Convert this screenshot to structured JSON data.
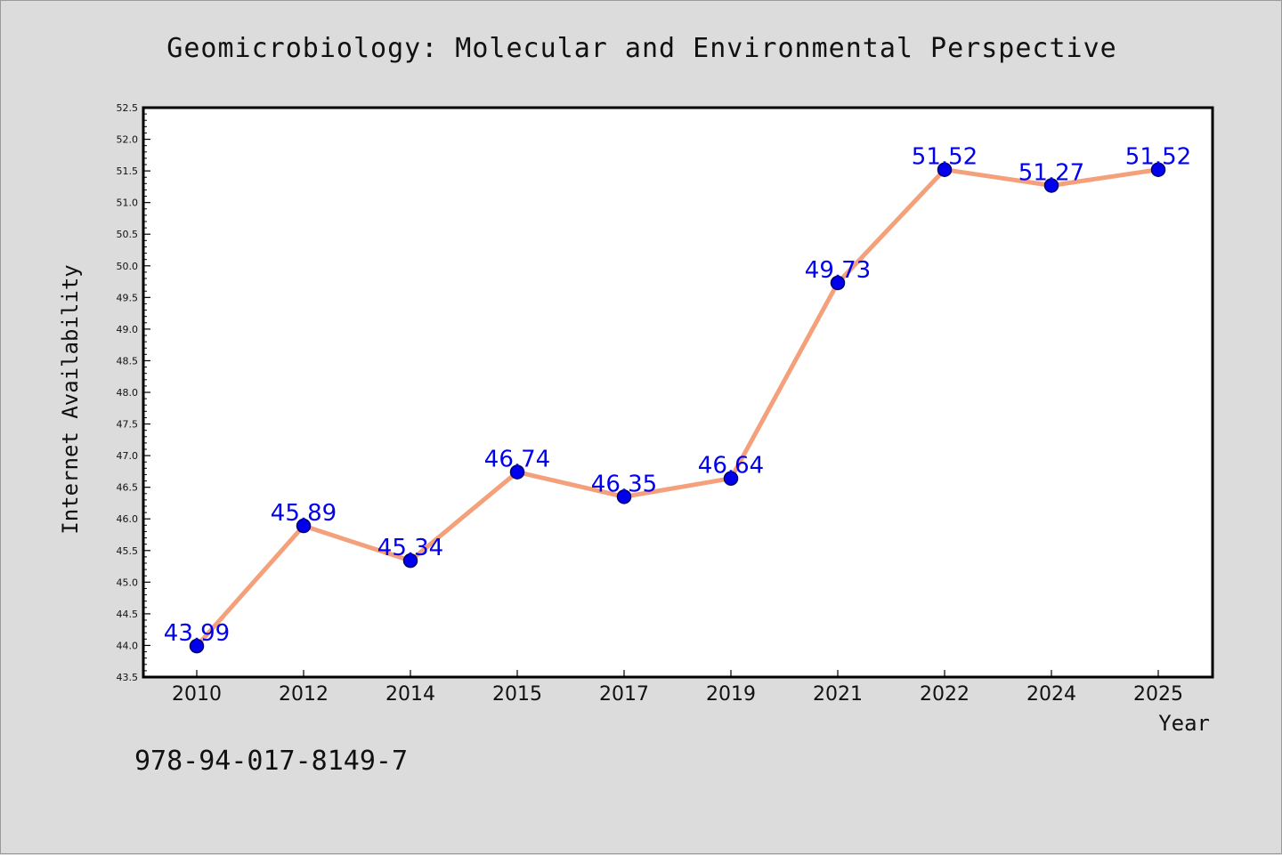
{
  "chart_data": {
    "type": "line",
    "title": "Geomicrobiology: Molecular and Environmental Perspective",
    "xlabel": "Year",
    "ylabel": "Internet Availability",
    "categories": [
      "2010",
      "2012",
      "2014",
      "2015",
      "2017",
      "2019",
      "2021",
      "2022",
      "2024",
      "2025"
    ],
    "values": [
      43.99,
      45.89,
      45.34,
      46.74,
      46.35,
      46.64,
      49.73,
      51.52,
      51.27,
      51.52
    ],
    "data_labels": [
      "43.99",
      "45.89",
      "45.34",
      "46.74",
      "46.35",
      "46.64",
      "49.73",
      "51.52",
      "51.27",
      "51.52"
    ],
    "ylim": [
      43.5,
      52.5
    ],
    "yticks": [
      "43.5",
      "44.0",
      "44.5",
      "45.0",
      "45.5",
      "46.0",
      "46.5",
      "47.0",
      "47.5",
      "48.0",
      "48.5",
      "49.0",
      "49.5",
      "50.0",
      "50.5",
      "51.0",
      "51.5",
      "52.0",
      "52.5"
    ],
    "grid": false,
    "legend": "none",
    "colors": {
      "line": "#f4a07a",
      "marker": "#0000ee",
      "labels": "#0000ee",
      "background": "#dcdcdc",
      "plot_background": "#ffffff"
    }
  },
  "footer": {
    "isbn": "978-94-017-8149-7"
  }
}
